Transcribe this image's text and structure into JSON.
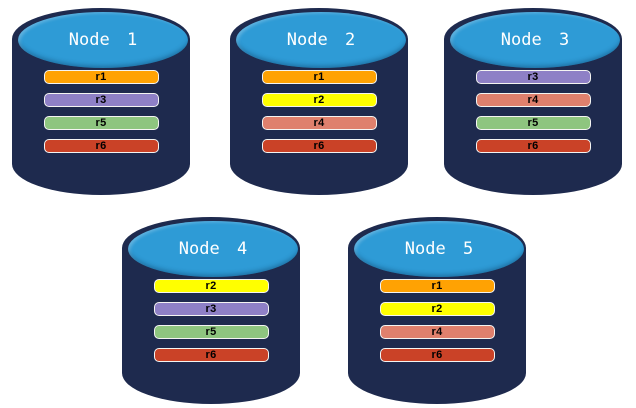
{
  "diagram": {
    "type": "database-replication-topology",
    "background": "#FFFFFF"
  },
  "colors": {
    "cylinder_body": "#1E2A4E",
    "cylinder_top": "#2E9BD6",
    "title_text": "#FFFFFF",
    "bar_text": "#000000",
    "bar_border": "#F4F4F2",
    "replica_colors": {
      "r1": "#FFA203",
      "r2": "#FFFF00",
      "r3": "#8E80C6",
      "r4": "#DF806D",
      "r5": "#8EC57F",
      "r6": "#CA4227"
    }
  },
  "nodes": [
    {
      "title": "Node 1",
      "replicas": [
        "r1",
        "r3",
        "r5",
        "r6"
      ]
    },
    {
      "title": "Node 2",
      "replicas": [
        "r1",
        "r2",
        "r4",
        "r6"
      ]
    },
    {
      "title": "Node 3",
      "replicas": [
        "r3",
        "r4",
        "r5",
        "r6"
      ]
    },
    {
      "title": "Node 4",
      "replicas": [
        "r2",
        "r3",
        "r5",
        "r6"
      ]
    },
    {
      "title": "Node 5",
      "replicas": [
        "r1",
        "r2",
        "r4",
        "r6"
      ]
    }
  ]
}
